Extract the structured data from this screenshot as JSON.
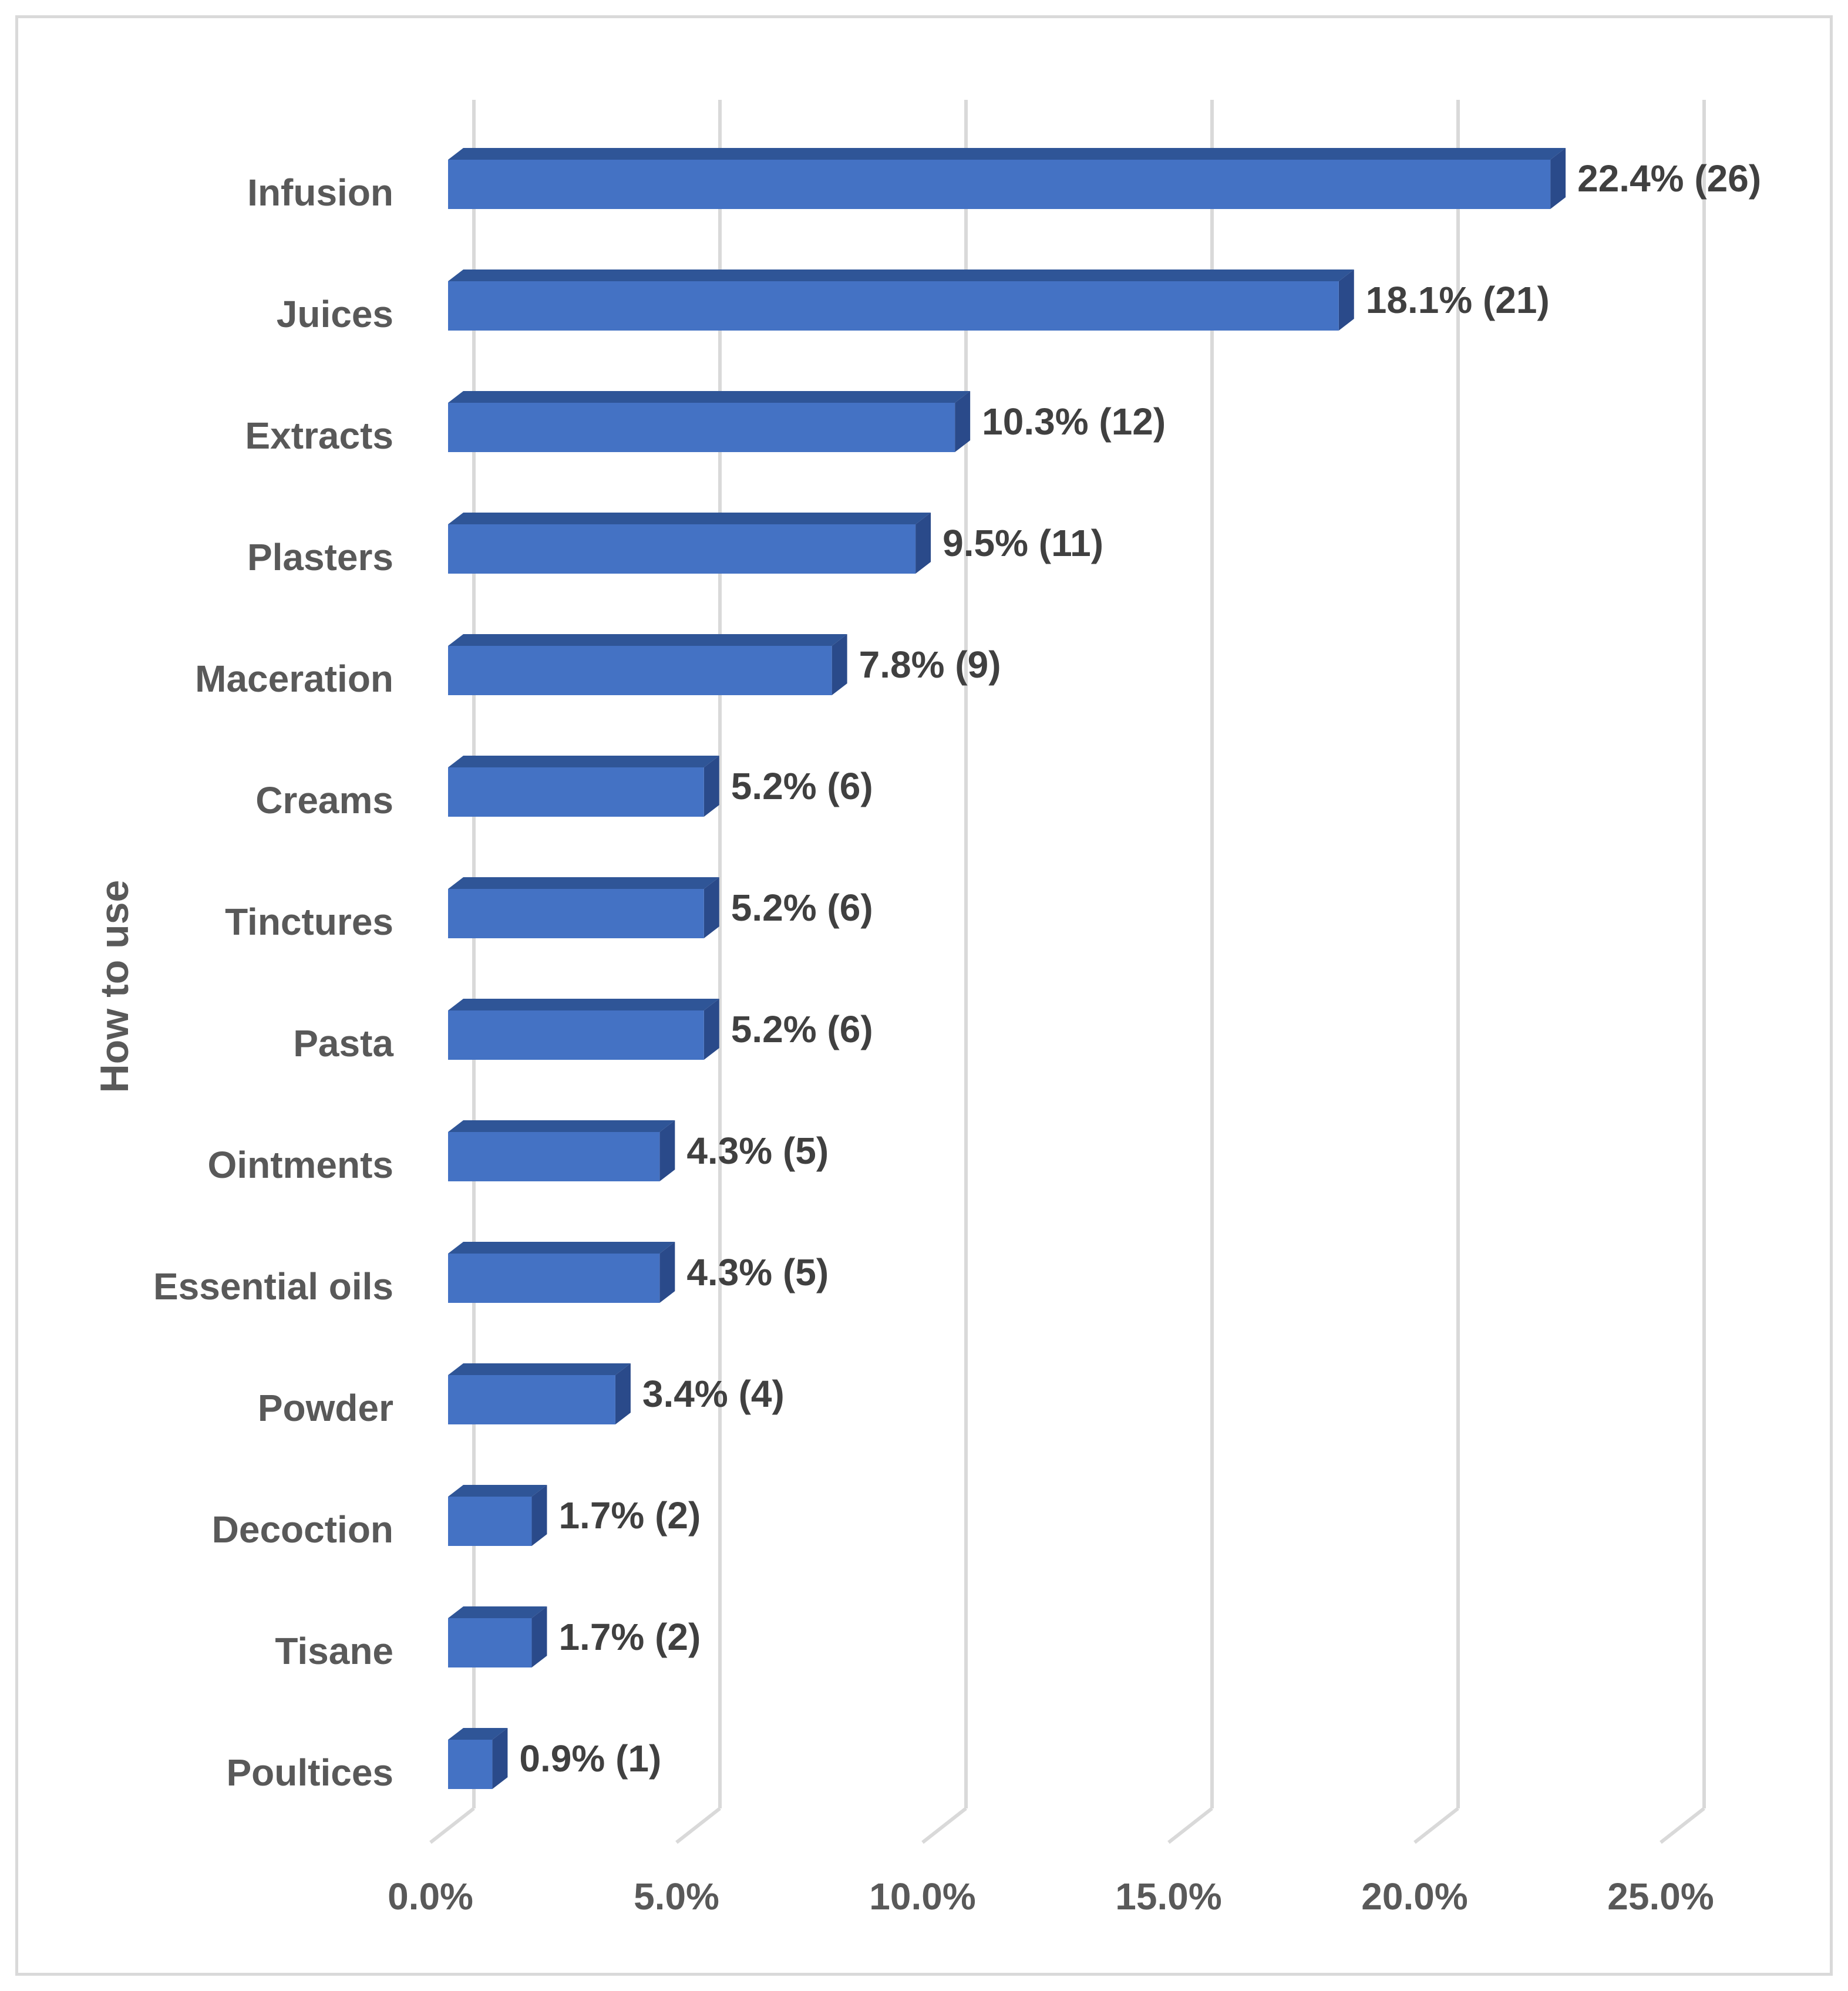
{
  "chart_data": {
    "type": "bar",
    "orientation": "horizontal",
    "style": "3d-clustered",
    "ylabel": "How to use",
    "xlabel": "",
    "title": "",
    "categories": [
      "Infusion",
      "Juices",
      "Extracts",
      "Plasters",
      "Maceration",
      "Creams",
      "Tinctures",
      "Pasta",
      "Ointments",
      "Essential oils",
      "Powder",
      "Decoction",
      "Tisane",
      "Poultices"
    ],
    "values": [
      22.4,
      18.1,
      10.3,
      9.5,
      7.8,
      5.2,
      5.2,
      5.2,
      4.3,
      4.3,
      3.4,
      1.7,
      1.7,
      0.9
    ],
    "counts": [
      26,
      21,
      12,
      11,
      9,
      6,
      6,
      6,
      5,
      5,
      4,
      2,
      2,
      1
    ],
    "data_labels": [
      "22.4% (26)",
      "18.1% (21)",
      "10.3% (12)",
      "9.5% (11)",
      "7.8% (9)",
      "5.2% (6)",
      "5.2% (6)",
      "5.2% (6)",
      "4.3% (5)",
      "4.3% (5)",
      "3.4% (4)",
      "1.7% (2)",
      "1.7% (2)",
      "0.9% (1)"
    ],
    "xlim": [
      0,
      25
    ],
    "xticks": [
      "0.0%",
      "5.0%",
      "10.0%",
      "15.0%",
      "20.0%",
      "25.0%"
    ],
    "grid": "vertical",
    "legend": "none",
    "colors": {
      "bar_front": "#4472c4",
      "bar_top": "#2f5597",
      "bar_side": "#2a4a8a",
      "grid": "#d9d9d9"
    }
  }
}
